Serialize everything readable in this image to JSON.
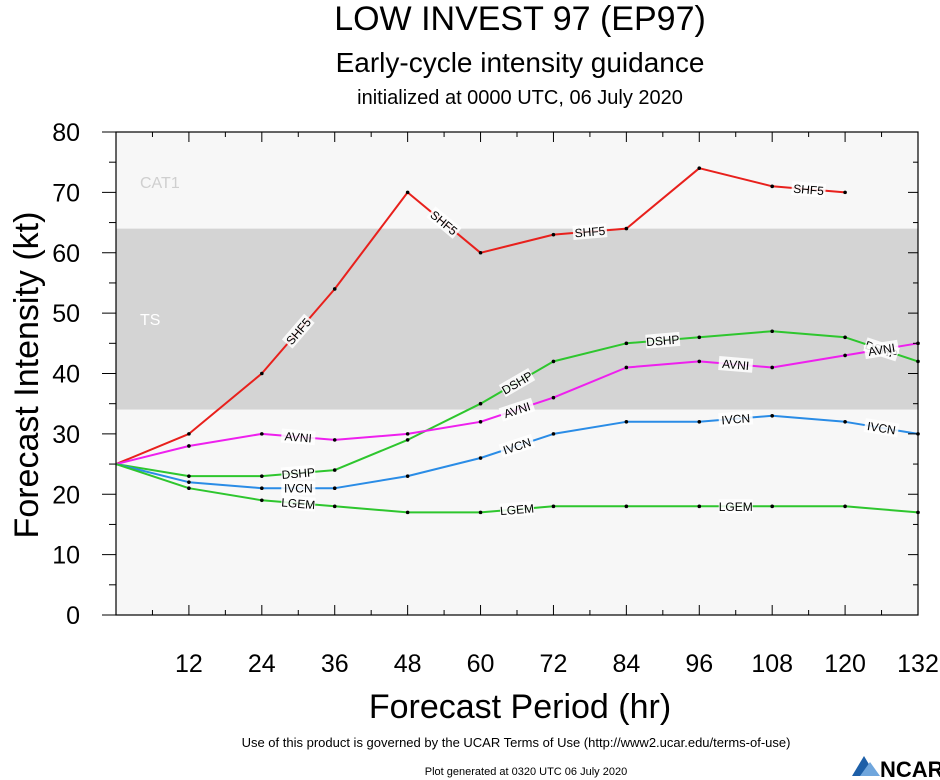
{
  "chart_data": {
    "type": "line",
    "title": "LOW INVEST 97 (EP97)",
    "subtitle": "Early-cycle intensity guidance",
    "subtitle2": "initialized at 0000 UTC, 06 July 2020",
    "xlabel": "Forecast Period (hr)",
    "ylabel": "Forecast Intensity (kt)",
    "xlim": [
      0,
      132
    ],
    "ylim": [
      0,
      80
    ],
    "x_ticks": [
      12,
      24,
      36,
      48,
      60,
      72,
      84,
      96,
      108,
      120,
      132
    ],
    "y_ticks": [
      0,
      10,
      20,
      30,
      40,
      50,
      60,
      70,
      80
    ],
    "bands": [
      {
        "label": "CAT1",
        "from": 64,
        "to": 83,
        "color": "#f7f7f7"
      },
      {
        "label": "TS",
        "from": 34,
        "to": 64,
        "color": "#d4d4d4"
      },
      {
        "label": "",
        "from": 0,
        "to": 34,
        "color": "#f7f7f7"
      }
    ],
    "series": [
      {
        "name": "SHF5",
        "color": "#e8201c",
        "x": [
          0,
          12,
          24,
          36,
          48,
          60,
          72,
          84,
          96,
          108,
          120
        ],
        "y": [
          25,
          30,
          40,
          54,
          70,
          60,
          63,
          64,
          74,
          71,
          70
        ],
        "label_at": [
          24,
          48,
          72,
          108
        ]
      },
      {
        "name": "DSHP",
        "color": "#2ec62e",
        "x": [
          0,
          12,
          24,
          36,
          48,
          60,
          72,
          84,
          96,
          108,
          120,
          132
        ],
        "y": [
          25,
          23,
          23,
          24,
          29,
          35,
          42,
          45,
          46,
          47,
          46,
          42
        ],
        "label_at": [
          24,
          60,
          84,
          120
        ]
      },
      {
        "name": "AVNI",
        "color": "#ee20ee",
        "x": [
          0,
          12,
          24,
          36,
          48,
          60,
          72,
          84,
          96,
          108,
          120,
          132
        ],
        "y": [
          25,
          28,
          30,
          29,
          30,
          32,
          36,
          41,
          42,
          41,
          43,
          45
        ],
        "label_at": [
          24,
          60,
          96,
          120
        ]
      },
      {
        "name": "IVCN",
        "color": "#2a8ce6",
        "x": [
          0,
          12,
          24,
          36,
          48,
          60,
          72,
          84,
          96,
          108,
          120,
          132
        ],
        "y": [
          25,
          22,
          21,
          21,
          23,
          26,
          30,
          32,
          32,
          33,
          32,
          30
        ],
        "label_at": [
          24,
          60,
          96,
          120
        ]
      },
      {
        "name": "LGEM",
        "color": "#2ec62e",
        "x": [
          0,
          12,
          24,
          36,
          48,
          60,
          72,
          84,
          96,
          108,
          120,
          132
        ],
        "y": [
          25,
          21,
          19,
          18,
          17,
          17,
          18,
          18,
          18,
          18,
          18,
          17
        ],
        "label_at": [
          24,
          60,
          96
        ]
      }
    ]
  },
  "footer": {
    "terms": "Use of this product is governed by the UCAR Terms of Use (http://www2.ucar.edu/terms-of-use)",
    "generated": "Plot generated at 0320 UTC   06 July 2020",
    "logo_text": "NCAR"
  }
}
